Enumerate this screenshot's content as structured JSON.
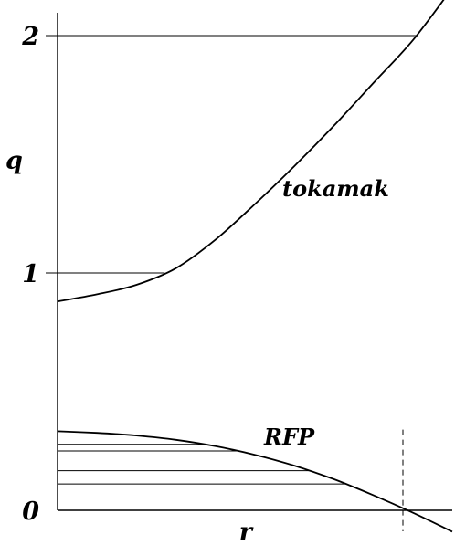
{
  "chart_data": {
    "type": "line",
    "title": "",
    "xlabel": "r",
    "ylabel": "q",
    "xlim": [
      0,
      1.0
    ],
    "ylim": [
      -0.06,
      2.12
    ],
    "yticks": [
      {
        "value": 0,
        "label": "0"
      },
      {
        "value": 1,
        "label": "1"
      },
      {
        "value": 2,
        "label": "2"
      }
    ],
    "grid": false,
    "series": [
      {
        "name": "tokamak",
        "x": [
          0.0,
          0.1,
          0.2,
          0.3,
          0.4,
          0.5,
          0.6,
          0.7,
          0.8,
          0.9,
          1.0
        ],
        "y": [
          0.88,
          0.91,
          0.95,
          1.02,
          1.14,
          1.29,
          1.45,
          1.62,
          1.8,
          1.98,
          2.2
        ]
      },
      {
        "name": "RFP",
        "x": [
          0.0,
          0.1,
          0.2,
          0.3,
          0.4,
          0.5,
          0.6,
          0.7,
          0.8,
          0.9,
          1.0
        ],
        "y": [
          0.333,
          0.326,
          0.315,
          0.297,
          0.27,
          0.234,
          0.188,
          0.131,
          0.064,
          -0.01,
          -0.09
        ]
      }
    ],
    "rational_surface_lines": [
      {
        "y": 2
      },
      {
        "y": 1
      },
      {
        "y": 0.278
      },
      {
        "y": 0.25
      },
      {
        "y": 0.167
      },
      {
        "y": 0.111
      }
    ],
    "reversal_marker_x": 0.875
  }
}
